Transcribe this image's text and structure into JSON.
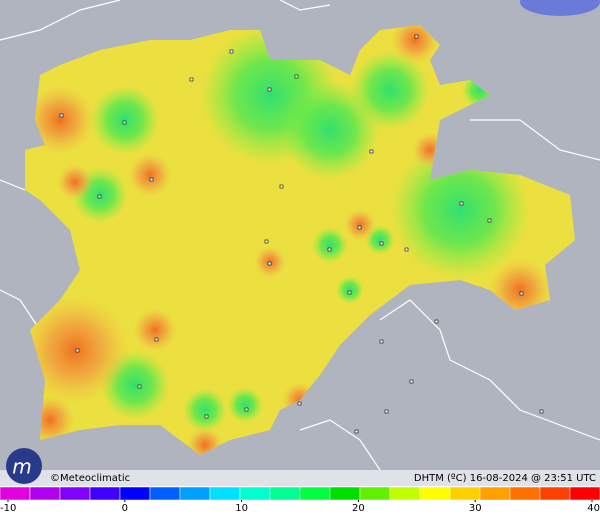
{
  "footer": {
    "credit": "©Meteoclimatic",
    "caption": "DHTM (ºC) 16-08-2024 @ 23:51 UTC"
  },
  "colorbar": {
    "range": [
      -10,
      40
    ],
    "ticks": [
      -10,
      0,
      10,
      20,
      30,
      40
    ],
    "colors": [
      "#e000e0",
      "#b000f0",
      "#8000ff",
      "#4000ff",
      "#0000ff",
      "#0060ff",
      "#00a0ff",
      "#00e0ff",
      "#00ffd0",
      "#00ff90",
      "#00ff40",
      "#00e000",
      "#60f000",
      "#c0ff00",
      "#ffff00",
      "#ffd000",
      "#ffa000",
      "#ff7000",
      "#ff4000",
      "#ff0000"
    ]
  }
}
